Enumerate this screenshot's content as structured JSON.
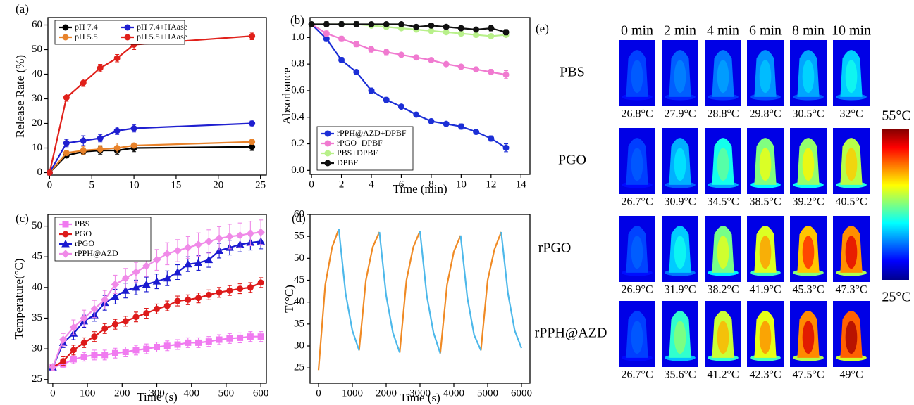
{
  "chart_data": [
    {
      "type": "line",
      "panel": "(a)",
      "y_label": "Release Rate (%)",
      "x": [
        0,
        2,
        4,
        6,
        8,
        10,
        24
      ],
      "xlim": [
        -0.2,
        25.7
      ],
      "xticks": [
        0,
        5,
        10,
        15,
        20,
        25
      ],
      "ylim": [
        -1,
        63
      ],
      "yticks": [
        0,
        10,
        20,
        30,
        40,
        50,
        60
      ],
      "legend": "top-left",
      "legend_columns": 2,
      "series": [
        {
          "name": "pH 7.4",
          "color": "#000000",
          "values": [
            0,
            7,
            8.5,
            9,
            9,
            10,
            10.5
          ],
          "errors": [
            0,
            1,
            1,
            1.5,
            1.5,
            1.5,
            1.5
          ]
        },
        {
          "name": "pH 5.5",
          "color": "#e8822a",
          "values": [
            0,
            8,
            9,
            9.5,
            10,
            11,
            12.5
          ],
          "errors": [
            0,
            1,
            1.5,
            1.5,
            2,
            1,
            1
          ]
        },
        {
          "name": "pH 7.4+HAase",
          "color": "#1f1fd0",
          "values": [
            0,
            12,
            13,
            14,
            17,
            18,
            20
          ],
          "errors": [
            0,
            1.5,
            2,
            1.5,
            1.5,
            1.5,
            1
          ]
        },
        {
          "name": "pH 5.5+HAase",
          "color": "#e0201a",
          "values": [
            0,
            30.5,
            36.5,
            42.5,
            46.5,
            52,
            55.5
          ],
          "errors": [
            0,
            1.5,
            1.5,
            1.5,
            1.5,
            2,
            1.5
          ]
        }
      ]
    },
    {
      "type": "line",
      "panel": "(b)",
      "x_label": "Time (min)",
      "y_label": "Absorbance",
      "x": [
        0,
        1,
        2,
        3,
        4,
        5,
        6,
        7,
        8,
        9,
        10,
        11,
        12,
        13
      ],
      "xlim": [
        -0.1,
        14.6
      ],
      "xticks": [
        0,
        2,
        4,
        6,
        8,
        10,
        12,
        14
      ],
      "ylim": [
        -0.03,
        1.15
      ],
      "yticks": [
        {
          "value": 0,
          "label": "0.0"
        },
        0.2,
        0.4,
        0.6,
        0.8,
        {
          "value": 1,
          "label": "1.0"
        }
      ],
      "legend": "bottom-left",
      "legend_columns": 1,
      "series": [
        {
          "name": "rPPH@AZD+DPBF",
          "color": "#1c2fd6",
          "values": [
            1.1,
            0.99,
            0.83,
            0.74,
            0.6,
            0.53,
            0.48,
            0.42,
            0.37,
            0.35,
            0.33,
            0.29,
            0.24,
            0.17
          ],
          "errors": [
            0.01,
            0.02,
            0.02,
            0.01,
            0.02,
            0.02,
            0.01,
            0.01,
            0.01,
            0.01,
            0.02,
            0.01,
            0.02,
            0.03
          ]
        },
        {
          "name": "rPGO+DPBF",
          "color": "#f07ad0",
          "values": [
            1.1,
            1.03,
            0.99,
            0.95,
            0.91,
            0.89,
            0.87,
            0.85,
            0.83,
            0.8,
            0.78,
            0.76,
            0.74,
            0.72
          ],
          "errors": [
            0.01,
            0.02,
            0.02,
            0.02,
            0.02,
            0.02,
            0.01,
            0.01,
            0.01,
            0.01,
            0.01,
            0.01,
            0.02,
            0.03
          ]
        },
        {
          "name": "PBS+DPBF",
          "color": "#b8f08a",
          "values": [
            1.1,
            1.1,
            1.1,
            1.1,
            1.09,
            1.08,
            1.07,
            1.06,
            1.05,
            1.04,
            1.03,
            1.02,
            1.01,
            1.02
          ],
          "errors": [
            0.01,
            0.01,
            0.01,
            0.01,
            0.01,
            0.01,
            0.01,
            0.01,
            0.01,
            0.01,
            0.01,
            0.01,
            0.01,
            0.01
          ]
        },
        {
          "name": "DPBF",
          "color": "#111111",
          "values": [
            1.1,
            1.1,
            1.1,
            1.1,
            1.1,
            1.1,
            1.1,
            1.08,
            1.09,
            1.08,
            1.07,
            1.06,
            1.07,
            1.04
          ],
          "errors": [
            0.01,
            0.02,
            0.02,
            0.02,
            0.01,
            0.01,
            0.01,
            0.01,
            0.01,
            0.01,
            0.01,
            0.01,
            0.02,
            0.02
          ]
        }
      ]
    },
    {
      "type": "line",
      "panel": "(c)",
      "x_label": "Time (s)",
      "y_label": "Temperature(°C)",
      "x": [
        0,
        30,
        60,
        90,
        120,
        150,
        180,
        210,
        240,
        270,
        300,
        330,
        360,
        390,
        420,
        450,
        480,
        510,
        540,
        570,
        600
      ],
      "xlim": [
        -14,
        616
      ],
      "xticks": [
        0,
        100,
        200,
        300,
        400,
        500,
        600
      ],
      "ylim": [
        24.4,
        51.9
      ],
      "yticks": [
        25,
        30,
        35,
        40,
        45,
        50
      ],
      "legend": "top-left",
      "legend_columns": 1,
      "series": [
        {
          "name": "PBS",
          "color": "#f07af0",
          "marker": "square",
          "values": [
            27,
            27.5,
            28.3,
            28.7,
            29,
            29,
            29.3,
            29.5,
            29.8,
            30,
            30.3,
            30.5,
            30.7,
            31,
            31,
            31.2,
            31.5,
            31.7,
            31.8,
            32,
            32
          ],
          "errors": [
            0.5,
            0.6,
            0.7,
            0.7,
            0.8,
            0.8,
            0.8,
            0.8,
            0.8,
            0.8,
            0.8,
            0.8,
            0.8,
            0.8,
            0.8,
            0.8,
            0.8,
            0.8,
            0.8,
            0.8,
            0.8
          ]
        },
        {
          "name": "PGO",
          "color": "#dd1a1a",
          "marker": "circle",
          "values": [
            27,
            28,
            29.8,
            31,
            32,
            33.3,
            34,
            34.5,
            35.2,
            35.8,
            36.5,
            37,
            37.8,
            38,
            38.3,
            38.8,
            39.2,
            39.5,
            39.8,
            40,
            40.8
          ],
          "errors": [
            0.5,
            0.7,
            0.8,
            0.8,
            0.8,
            0.8,
            0.8,
            0.8,
            0.8,
            0.8,
            0.8,
            0.8,
            0.8,
            0.8,
            0.8,
            0.8,
            0.8,
            0.8,
            0.8,
            0.8,
            0.8
          ]
        },
        {
          "name": "rPGO",
          "color": "#1a1ad0",
          "marker": "triangle",
          "values": [
            27,
            31,
            32.5,
            34.5,
            35.5,
            37.5,
            38.5,
            39.5,
            40,
            40.5,
            41,
            41.5,
            42.5,
            43.8,
            44,
            44.5,
            46,
            46.5,
            47,
            47.3,
            47.5
          ],
          "errors": [
            0.5,
            0.8,
            1,
            1,
            1,
            1.2,
            1.2,
            1.2,
            1.2,
            1.2,
            1.2,
            1.2,
            1.2,
            1.2,
            1.2,
            1.2,
            1.2,
            1.2,
            1.2,
            1.2,
            1.2
          ]
        },
        {
          "name": "rPPH@AZD",
          "color": "#f08ae8",
          "marker": "diamond",
          "values": [
            27,
            31.5,
            33.5,
            35,
            36.5,
            38,
            40.5,
            41.5,
            42.5,
            43.5,
            44.5,
            45.5,
            46,
            46.5,
            47,
            47.5,
            48,
            48.3,
            48.5,
            48.8,
            49
          ],
          "errors": [
            0.5,
            1,
            1.2,
            1.3,
            1.4,
            1.5,
            1.5,
            1.6,
            1.6,
            1.7,
            1.7,
            1.8,
            1.8,
            1.8,
            1.9,
            1.9,
            1.9,
            2,
            2,
            2,
            2
          ]
        }
      ]
    },
    {
      "type": "line",
      "panel": "(d)",
      "x_label": "Time (s)",
      "y_label": "T(°C)",
      "x": [
        0,
        200,
        400,
        600,
        800,
        1000,
        1200,
        1400,
        1600,
        1800,
        2000,
        2200,
        2400,
        2600,
        2800,
        3000,
        3200,
        3400,
        3600,
        3800,
        4000,
        4200,
        4400,
        4600,
        4800,
        5000,
        5200,
        5400,
        5600,
        5800,
        6000
      ],
      "xlim": [
        -250,
        6250
      ],
      "xticks": [
        0,
        1000,
        2000,
        3000,
        4000,
        5000,
        6000
      ],
      "ylim": [
        21.5,
        60
      ],
      "yticks": [
        25,
        30,
        35,
        40,
        45,
        50,
        55,
        60
      ],
      "series": [
        {
          "color": "#f08a24",
          "values": [
            24.5,
            44,
            52.5,
            56.7,
            null,
            null,
            29,
            45,
            52.5,
            56,
            null,
            null,
            28.5,
            45,
            52.5,
            56.2,
            null,
            null,
            28.3,
            44,
            51.5,
            55.2,
            null,
            null,
            29,
            45,
            52,
            56,
            null,
            null,
            null
          ]
        },
        {
          "color": "#4db8ea",
          "values": [
            null,
            null,
            null,
            56.7,
            42,
            33.5,
            29,
            null,
            null,
            56,
            41.5,
            33,
            28.5,
            null,
            null,
            56.2,
            41.5,
            33,
            28.3,
            null,
            null,
            55.2,
            41,
            32.5,
            29,
            null,
            null,
            56,
            42,
            33.5,
            29.5
          ]
        }
      ]
    }
  ],
  "thermal": {
    "panel": "(e)",
    "columns": [
      "0 min",
      "2 min",
      "4 min",
      "6 min",
      "8 min",
      "10 min"
    ],
    "rows": [
      {
        "label": "PBS",
        "temps": [
          {
            "value": 26.8,
            "label": "26.8°C"
          },
          {
            "value": 27.9,
            "label": "27.9°C"
          },
          {
            "value": 28.8,
            "label": "28.8°C"
          },
          {
            "value": 29.8,
            "label": "29.8°C"
          },
          {
            "value": 30.5,
            "label": "30.5°C"
          },
          {
            "value": 32,
            "label": "32°C"
          }
        ]
      },
      {
        "label": "PGO",
        "temps": [
          {
            "value": 26.7,
            "label": "26.7°C"
          },
          {
            "value": 30.9,
            "label": "30.9°C"
          },
          {
            "value": 34.5,
            "label": "34.5°C"
          },
          {
            "value": 38.5,
            "label": "38.5°C"
          },
          {
            "value": 39.2,
            "label": "39.2°C"
          },
          {
            "value": 40.5,
            "label": "40.5°C"
          }
        ]
      },
      {
        "label": "rPGO",
        "temps": [
          {
            "value": 26.9,
            "label": "26.9°C"
          },
          {
            "value": 31.9,
            "label": "31.9°C"
          },
          {
            "value": 38.2,
            "label": "38.2°C"
          },
          {
            "value": 41.9,
            "label": "41.9°C"
          },
          {
            "value": 45.3,
            "label": "45.3°C"
          },
          {
            "value": 47.3,
            "label": "47.3°C"
          }
        ]
      },
      {
        "label": "rPPH@AZD",
        "temps": [
          {
            "value": 26.7,
            "label": "26.7°C"
          },
          {
            "value": 35.6,
            "label": "35.6°C"
          },
          {
            "value": 41.2,
            "label": "41.2°C"
          },
          {
            "value": 42.3,
            "label": "42.3°C"
          },
          {
            "value": 47.5,
            "label": "47.5°C"
          },
          {
            "value": 49,
            "label": "49°C"
          }
        ]
      }
    ],
    "colorbar": {
      "max": {
        "value": 55,
        "label": "55°C"
      },
      "min": {
        "value": 25,
        "label": "25°C"
      }
    }
  }
}
